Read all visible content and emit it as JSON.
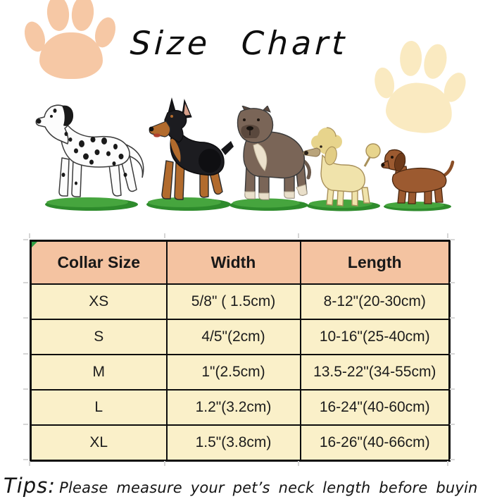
{
  "title": "Size Chart",
  "tips": {
    "label": "Tips:",
    "text": "Please measure your pet’s neck length before buying it."
  },
  "decor": {
    "paw_icon_left_color": "#f6c8a5",
    "paw_icon_right_color": "#faeac1",
    "dog_breeds": [
      "dalmatian",
      "doberman",
      "pit-bull",
      "poodle",
      "dachshund"
    ],
    "grass_color": "#3da23a",
    "header_bg": "#f4c3a1",
    "row_bg": "#faf0c9",
    "table_border": "#0d0d0d"
  },
  "chart_data": {
    "type": "table",
    "title": "Size Chart",
    "columns": [
      "Collar Size",
      "Width",
      "Length"
    ],
    "rows": [
      [
        "XS",
        "5/8\" ( 1.5cm)",
        "8-12\"(20-30cm)"
      ],
      [
        "S",
        "4/5\"(2cm)",
        "10-16\"(25-40cm)"
      ],
      [
        "M",
        "1\"(2.5cm)",
        "13.5-22\"(34-55cm)"
      ],
      [
        "L",
        "1.2\"(3.2cm)",
        "16-24\"(40-60cm)"
      ],
      [
        "XL",
        "1.5\"(3.8cm)",
        "16-26\"(40-66cm)"
      ]
    ]
  }
}
